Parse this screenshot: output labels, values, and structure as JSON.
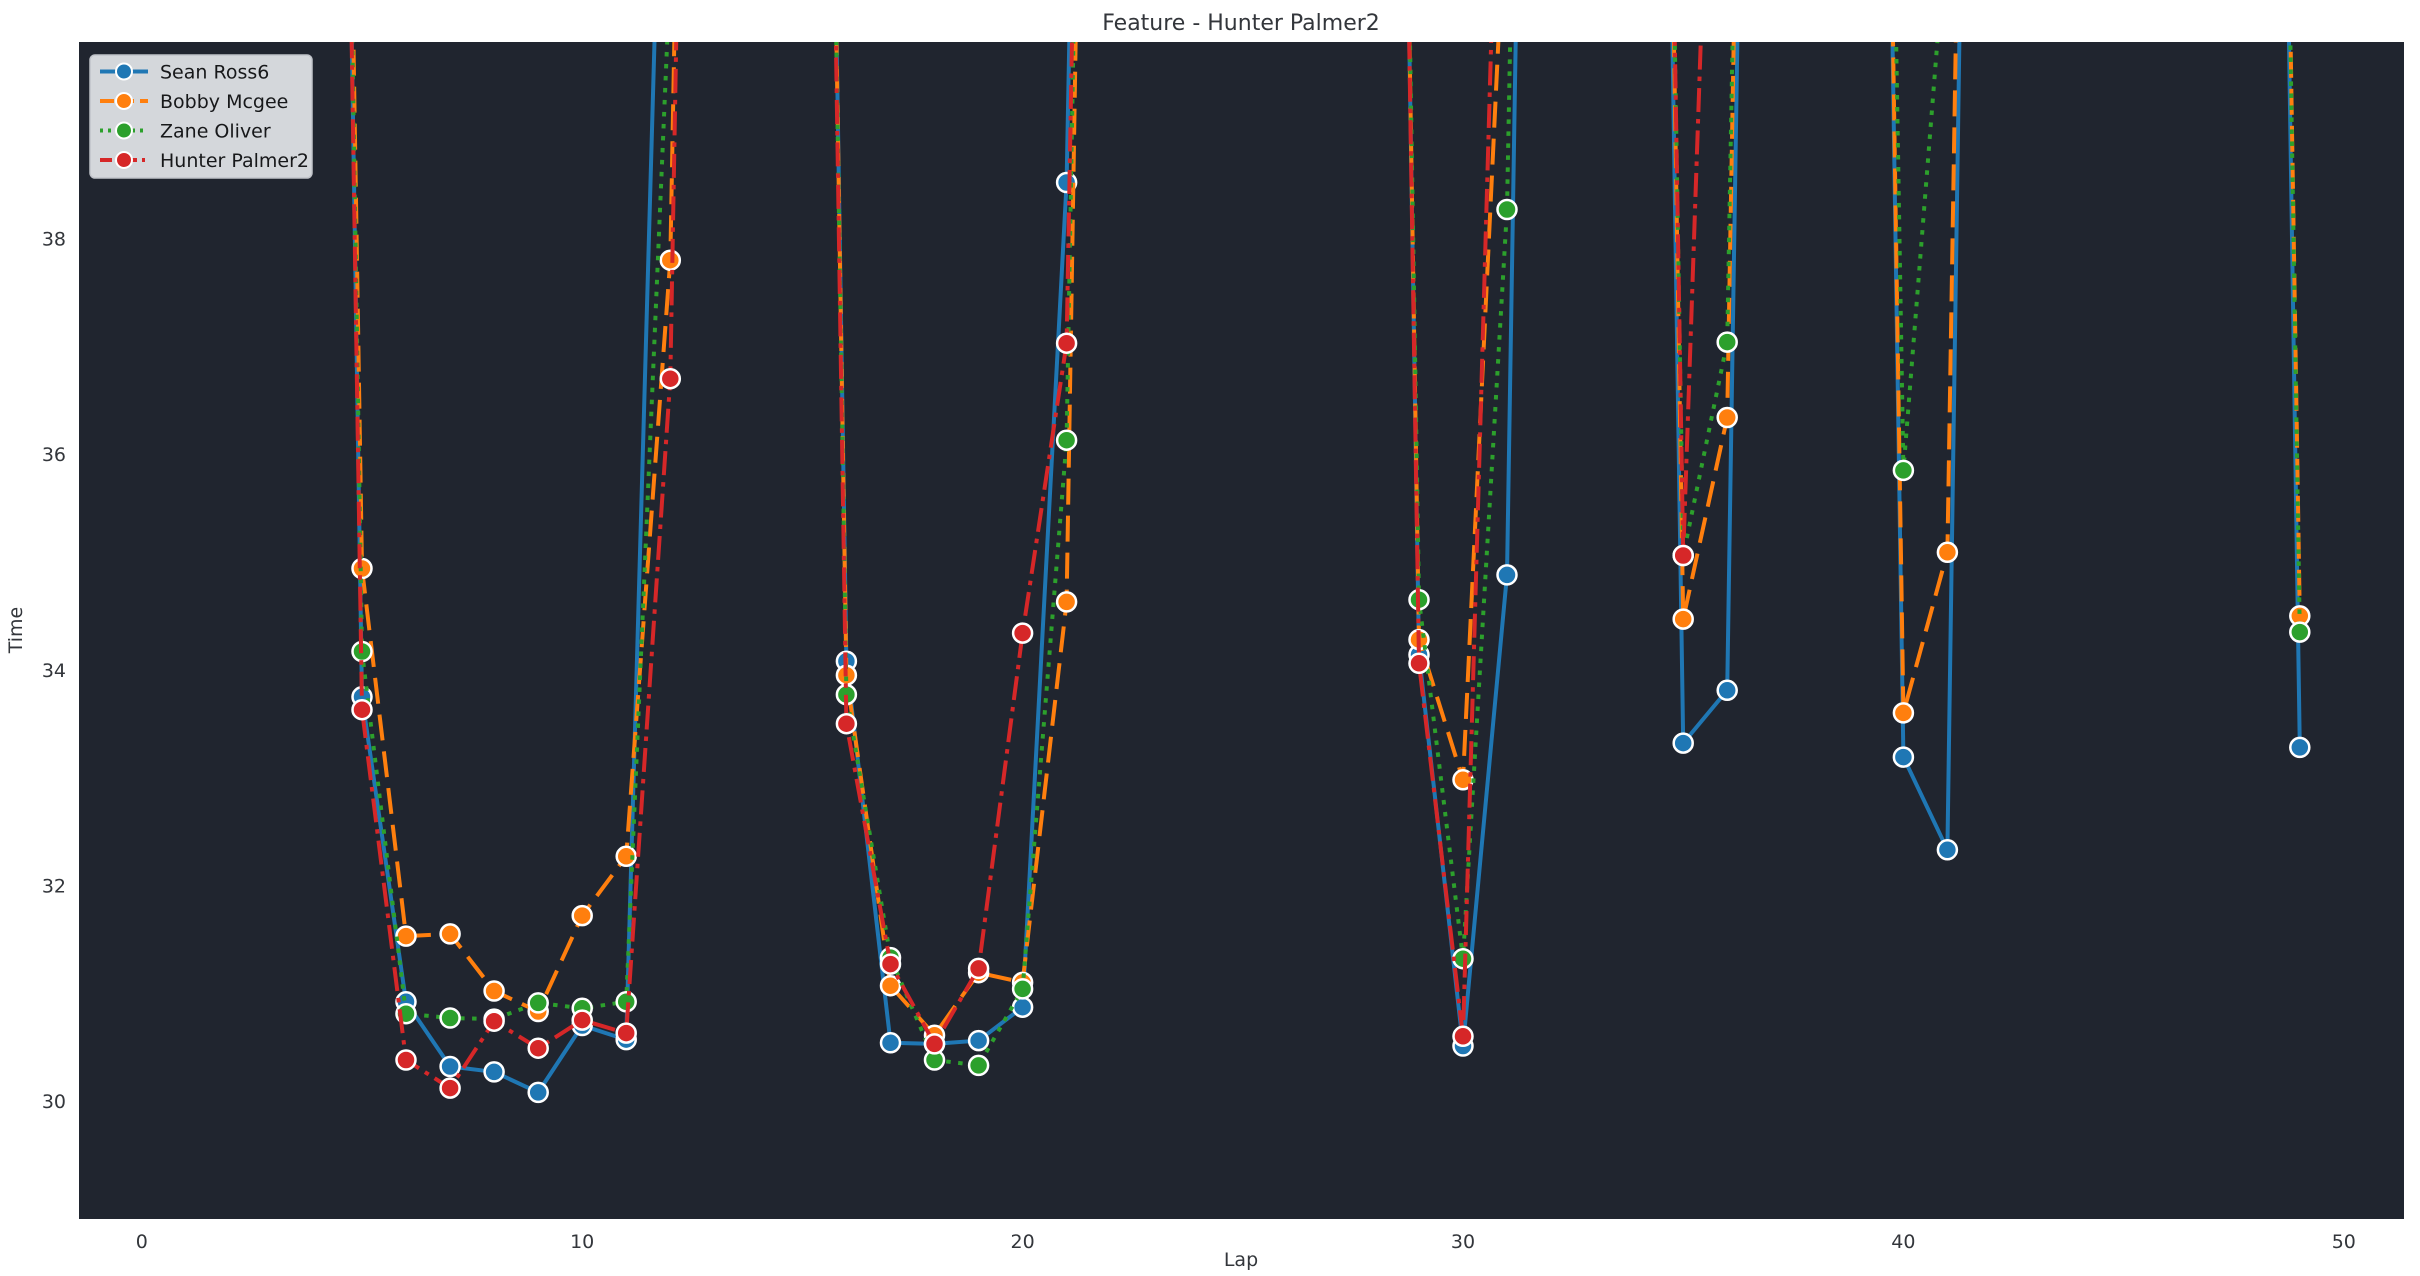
{
  "chart_data": {
    "type": "line",
    "title": "Feature - Hunter Palmer2",
    "xlabel": "Lap",
    "ylabel": "Time",
    "x_ticks": [
      0,
      10,
      20,
      30,
      40,
      50
    ],
    "y_ticks": [
      30,
      32,
      34,
      36,
      38
    ],
    "xlim": [
      -1.4,
      51.4
    ],
    "ylim": [
      28.9,
      39.8
    ],
    "grid": false,
    "legend_position": "upper-left",
    "colors": {
      "figure_background": "#ffffff",
      "plot_background": "#20252f",
      "legend_background": "#d4d7db",
      "legend_border": "#c0c3c9",
      "text": "#33363b",
      "marker_edge": "#ffffff"
    },
    "offscale_spike_value": 60,
    "series": [
      {
        "name": "Sean Ross6",
        "slug": "sean-ross6",
        "color": "#1f77b4",
        "linestyle": "solid",
        "marker": "circle",
        "points": [
          [
            4,
            60
          ],
          [
            5,
            33.75
          ],
          [
            6,
            30.92
          ],
          [
            7,
            30.32
          ],
          [
            8,
            30.27
          ],
          [
            9,
            30.08
          ],
          [
            10,
            30.7
          ],
          [
            11,
            30.57
          ],
          [
            12,
            45
          ],
          [
            13,
            60
          ],
          [
            14,
            60
          ],
          [
            15,
            60
          ],
          [
            16,
            34.08
          ],
          [
            17,
            30.54
          ],
          [
            18,
            30.53
          ],
          [
            19,
            30.56
          ],
          [
            20,
            30.87
          ],
          [
            21,
            38.52
          ],
          [
            22,
            60
          ],
          [
            23,
            60
          ],
          [
            24,
            60
          ],
          [
            25,
            60
          ],
          [
            26,
            60
          ],
          [
            27,
            60
          ],
          [
            28,
            60
          ],
          [
            29,
            34.14
          ],
          [
            30,
            30.51
          ],
          [
            31,
            34.88
          ],
          [
            32,
            60
          ],
          [
            33,
            60
          ],
          [
            34,
            60
          ],
          [
            35,
            33.32
          ],
          [
            36,
            33.81
          ],
          [
            37,
            60
          ],
          [
            38,
            60
          ],
          [
            39,
            60
          ],
          [
            40,
            33.19
          ],
          [
            41,
            32.33
          ],
          [
            42,
            60
          ],
          [
            43,
            60
          ],
          [
            44,
            60
          ],
          [
            45,
            60
          ],
          [
            46,
            60
          ],
          [
            47,
            60
          ],
          [
            48,
            60
          ],
          [
            49,
            33.28
          ]
        ]
      },
      {
        "name": "Bobby Mcgee",
        "slug": "bobby-mcgee",
        "color": "#ff7f0e",
        "linestyle": "dashed",
        "marker": "circle",
        "points": [
          [
            4,
            60
          ],
          [
            5,
            34.94
          ],
          [
            6,
            31.53
          ],
          [
            7,
            31.55
          ],
          [
            8,
            31.02
          ],
          [
            9,
            30.83
          ],
          [
            10,
            31.72
          ],
          [
            11,
            32.27
          ],
          [
            12,
            37.8
          ],
          [
            13,
            60
          ],
          [
            14,
            60
          ],
          [
            15,
            60
          ],
          [
            16,
            33.95
          ],
          [
            17,
            31.07
          ],
          [
            18,
            30.61
          ],
          [
            19,
            31.19
          ],
          [
            20,
            31.1
          ],
          [
            21,
            34.63
          ],
          [
            22,
            60
          ],
          [
            23,
            60
          ],
          [
            24,
            60
          ],
          [
            25,
            60
          ],
          [
            26,
            60
          ],
          [
            27,
            60
          ],
          [
            28,
            60
          ],
          [
            29,
            34.28
          ],
          [
            30,
            32.98
          ],
          [
            31,
            41.5
          ],
          [
            32,
            60
          ],
          [
            33,
            60
          ],
          [
            34,
            60
          ],
          [
            35,
            34.47
          ],
          [
            36,
            36.34
          ],
          [
            37,
            60
          ],
          [
            38,
            60
          ],
          [
            39,
            60
          ],
          [
            40,
            33.6
          ],
          [
            41,
            35.09
          ],
          [
            42,
            60
          ],
          [
            43,
            60
          ],
          [
            44,
            60
          ],
          [
            45,
            60
          ],
          [
            46,
            60
          ],
          [
            47,
            60
          ],
          [
            48,
            60
          ],
          [
            49,
            34.5
          ]
        ]
      },
      {
        "name": "Zane Oliver",
        "slug": "zane-oliver",
        "color": "#2ca02c",
        "linestyle": "dotted",
        "marker": "circle",
        "points": [
          [
            4,
            60
          ],
          [
            5,
            34.17
          ],
          [
            6,
            30.81
          ],
          [
            7,
            30.77
          ],
          [
            8,
            30.76
          ],
          [
            9,
            30.91
          ],
          [
            10,
            30.86
          ],
          [
            11,
            30.92
          ],
          [
            12,
            40.5
          ],
          [
            13,
            60
          ],
          [
            14,
            60
          ],
          [
            15,
            60
          ],
          [
            16,
            33.77
          ],
          [
            17,
            31.33
          ],
          [
            18,
            30.38
          ],
          [
            19,
            30.33
          ],
          [
            20,
            31.04
          ],
          [
            21,
            36.13
          ],
          [
            22,
            60
          ],
          [
            23,
            60
          ],
          [
            24,
            60
          ],
          [
            25,
            60
          ],
          [
            26,
            60
          ],
          [
            27,
            60
          ],
          [
            28,
            60
          ],
          [
            29,
            34.65
          ],
          [
            30,
            31.32
          ],
          [
            31,
            38.27
          ],
          [
            32,
            60
          ],
          [
            33,
            60
          ],
          [
            34,
            60
          ],
          [
            35,
            35.06
          ],
          [
            36,
            37.04
          ],
          [
            37,
            60
          ],
          [
            38,
            60
          ],
          [
            39,
            60
          ],
          [
            40,
            35.85
          ],
          [
            41,
            41
          ],
          [
            42,
            60
          ],
          [
            43,
            60
          ],
          [
            44,
            60
          ],
          [
            45,
            60
          ],
          [
            46,
            60
          ],
          [
            47,
            60
          ],
          [
            48,
            60
          ],
          [
            49,
            34.35
          ]
        ]
      },
      {
        "name": "Hunter Palmer2",
        "slug": "hunter-palmer2",
        "color": "#d62728",
        "linestyle": "dashdot",
        "marker": "circle",
        "points": [
          [
            4,
            60
          ],
          [
            5,
            33.63
          ],
          [
            6,
            30.38
          ],
          [
            7,
            30.12
          ],
          [
            8,
            30.74
          ],
          [
            9,
            30.49
          ],
          [
            10,
            30.75
          ],
          [
            11,
            30.63
          ],
          [
            12,
            36.7
          ],
          [
            13,
            60
          ],
          [
            14,
            60
          ],
          [
            15,
            60
          ],
          [
            16,
            33.5
          ],
          [
            17,
            31.27
          ],
          [
            18,
            30.53
          ],
          [
            19,
            31.23
          ],
          [
            20,
            34.34
          ],
          [
            21,
            37.03
          ],
          [
            22,
            60
          ],
          [
            23,
            60
          ],
          [
            24,
            60
          ],
          [
            25,
            60
          ],
          [
            26,
            60
          ],
          [
            27,
            60
          ],
          [
            28,
            60
          ],
          [
            29,
            34.06
          ],
          [
            30,
            30.6
          ],
          [
            31,
            45
          ],
          [
            32,
            60
          ],
          [
            33,
            60
          ],
          [
            34,
            60
          ],
          [
            35,
            35.06
          ],
          [
            36,
            47
          ]
        ]
      }
    ]
  }
}
